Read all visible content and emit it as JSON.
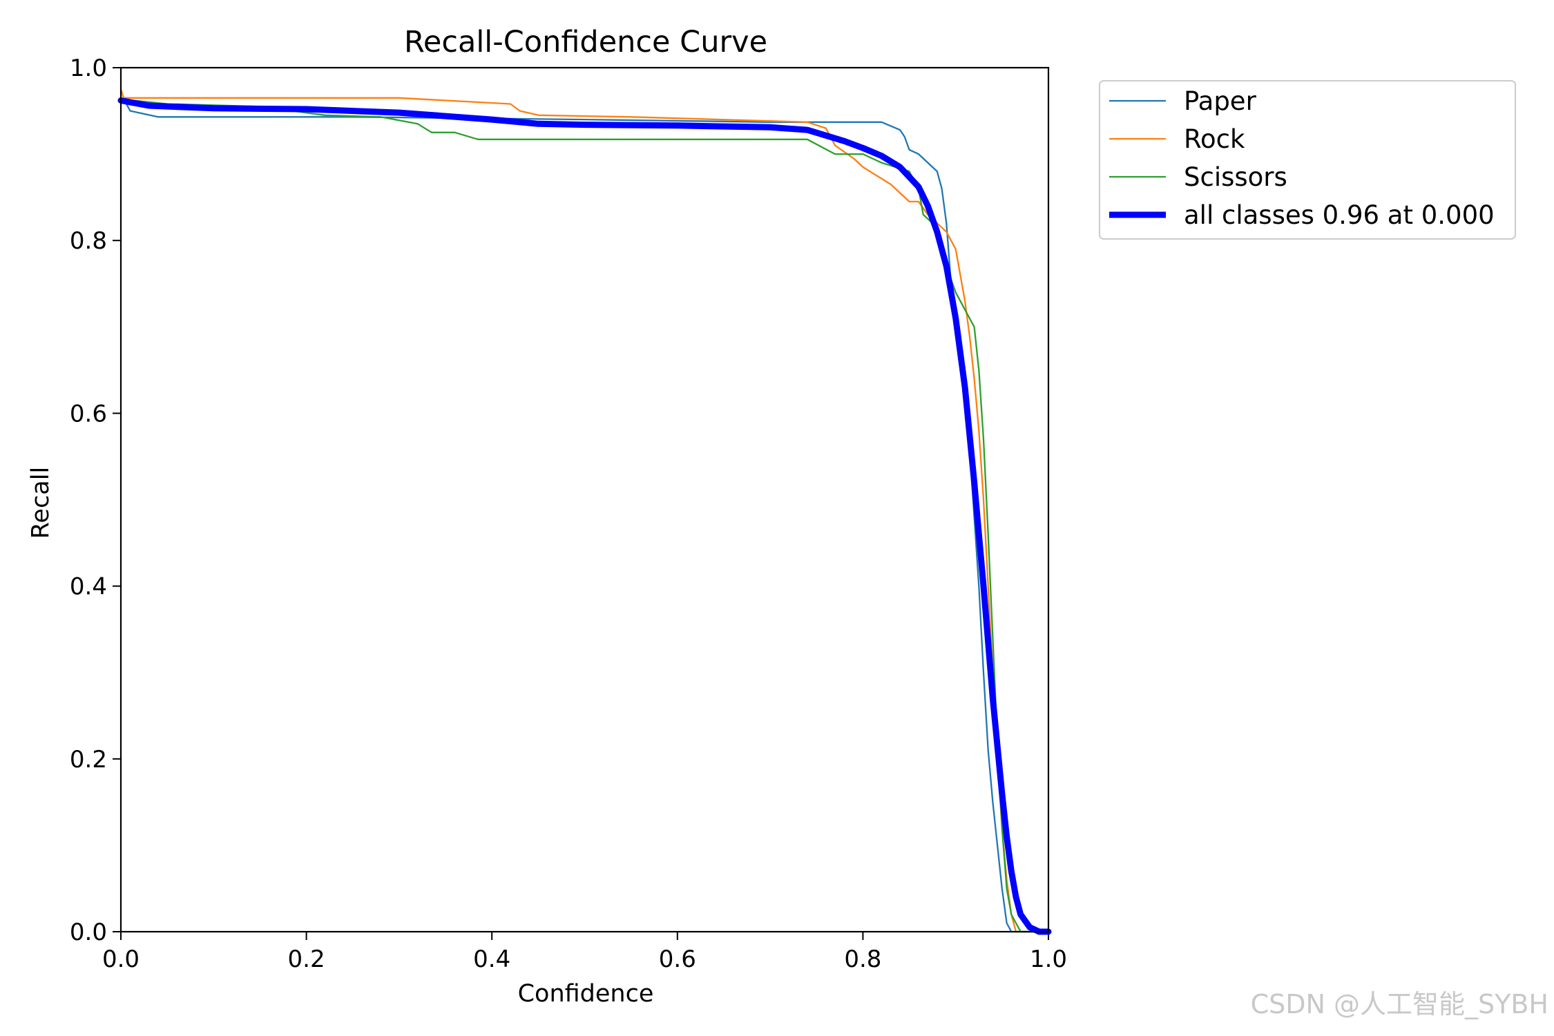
{
  "chart_data": {
    "type": "line",
    "title": "Recall-Confidence Curve",
    "xlabel": "Confidence",
    "ylabel": "Recall",
    "xlim": [
      0,
      1
    ],
    "ylim": [
      0,
      1
    ],
    "xticks": [
      "0.0",
      "0.2",
      "0.4",
      "0.6",
      "0.8",
      "1.0"
    ],
    "yticks": [
      "0.0",
      "0.2",
      "0.4",
      "0.6",
      "0.8",
      "1.0"
    ],
    "grid": false,
    "legend_position": "outside-top-right",
    "series": [
      {
        "name": "Paper",
        "color": "#1f77b4",
        "width": "thin",
        "x": [
          0.0,
          0.005,
          0.01,
          0.04,
          0.1,
          0.25,
          0.5,
          0.7,
          0.82,
          0.84,
          0.845,
          0.85,
          0.86,
          0.865,
          0.87,
          0.875,
          0.88,
          0.885,
          0.89,
          0.895,
          0.9,
          0.905,
          0.91,
          0.915,
          0.92,
          0.925,
          0.93,
          0.935,
          0.94,
          0.945,
          0.95,
          0.955,
          0.96,
          1.0
        ],
        "y": [
          0.96,
          0.96,
          0.95,
          0.943,
          0.943,
          0.943,
          0.94,
          0.937,
          0.937,
          0.928,
          0.92,
          0.905,
          0.9,
          0.895,
          0.89,
          0.885,
          0.88,
          0.86,
          0.82,
          0.75,
          0.72,
          0.68,
          0.62,
          0.56,
          0.48,
          0.4,
          0.3,
          0.21,
          0.15,
          0.1,
          0.05,
          0.01,
          0.0,
          0.0
        ]
      },
      {
        "name": "Rock",
        "color": "#ff7f0e",
        "width": "thin",
        "x": [
          0.0,
          0.003,
          0.01,
          0.1,
          0.3,
          0.42,
          0.43,
          0.45,
          0.55,
          0.74,
          0.76,
          0.77,
          0.79,
          0.8,
          0.83,
          0.85,
          0.86,
          0.87,
          0.88,
          0.89,
          0.9,
          0.905,
          0.91,
          0.915,
          0.92,
          0.925,
          0.93,
          0.935,
          0.94,
          0.945,
          0.95,
          0.955,
          0.96,
          0.965,
          1.0
        ],
        "y": [
          0.975,
          0.965,
          0.965,
          0.965,
          0.965,
          0.958,
          0.95,
          0.945,
          0.943,
          0.937,
          0.93,
          0.91,
          0.895,
          0.885,
          0.865,
          0.845,
          0.845,
          0.83,
          0.82,
          0.81,
          0.79,
          0.76,
          0.73,
          0.69,
          0.64,
          0.58,
          0.5,
          0.4,
          0.3,
          0.2,
          0.12,
          0.06,
          0.02,
          0.0,
          0.0
        ]
      },
      {
        "name": "Scissors",
        "color": "#2ca02c",
        "width": "thin",
        "x": [
          0.0,
          0.005,
          0.05,
          0.15,
          0.22,
          0.28,
          0.32,
          0.335,
          0.36,
          0.385,
          0.5,
          0.7,
          0.74,
          0.77,
          0.8,
          0.82,
          0.85,
          0.86,
          0.865,
          0.875,
          0.88,
          0.89,
          0.9,
          0.91,
          0.92,
          0.925,
          0.93,
          0.935,
          0.94,
          0.945,
          0.95,
          0.955,
          0.96,
          0.965,
          0.97,
          1.0
        ],
        "y": [
          0.965,
          0.963,
          0.958,
          0.955,
          0.945,
          0.943,
          0.935,
          0.925,
          0.925,
          0.917,
          0.917,
          0.917,
          0.917,
          0.9,
          0.9,
          0.89,
          0.88,
          0.86,
          0.83,
          0.82,
          0.8,
          0.77,
          0.74,
          0.72,
          0.7,
          0.65,
          0.57,
          0.46,
          0.34,
          0.22,
          0.12,
          0.05,
          0.02,
          0.01,
          0.0,
          0.0
        ]
      },
      {
        "name": "all classes 0.96 at 0.000",
        "color": "#0000ff",
        "width": "thick",
        "x": [
          0.0,
          0.03,
          0.1,
          0.2,
          0.3,
          0.4,
          0.45,
          0.5,
          0.6,
          0.7,
          0.74,
          0.78,
          0.8,
          0.82,
          0.84,
          0.86,
          0.87,
          0.88,
          0.89,
          0.9,
          0.91,
          0.92,
          0.93,
          0.94,
          0.95,
          0.955,
          0.96,
          0.965,
          0.97,
          0.98,
          0.99,
          1.0
        ],
        "y": [
          0.962,
          0.956,
          0.953,
          0.952,
          0.948,
          0.94,
          0.935,
          0.934,
          0.933,
          0.931,
          0.928,
          0.915,
          0.907,
          0.898,
          0.885,
          0.862,
          0.84,
          0.81,
          0.77,
          0.71,
          0.63,
          0.52,
          0.4,
          0.27,
          0.16,
          0.11,
          0.07,
          0.04,
          0.02,
          0.005,
          0.0,
          0.0
        ]
      }
    ]
  },
  "watermark": "CSDN @人工智能_SYBH"
}
